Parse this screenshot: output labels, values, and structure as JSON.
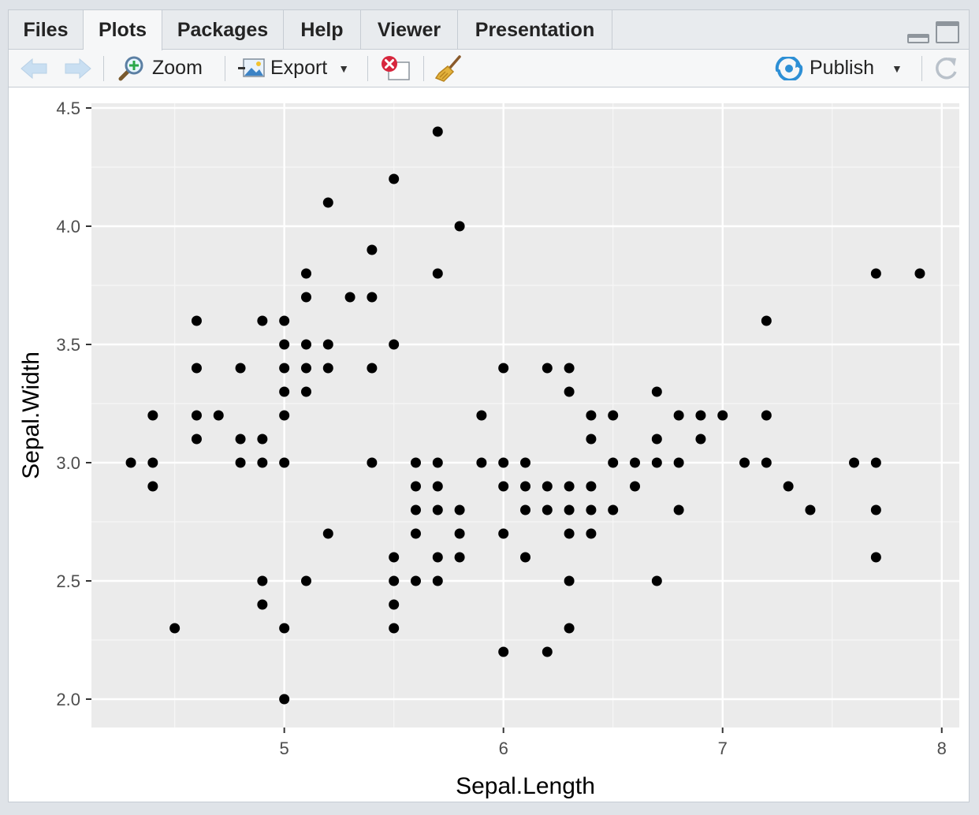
{
  "tabs": [
    {
      "label": "Files",
      "active": false
    },
    {
      "label": "Plots",
      "active": true
    },
    {
      "label": "Packages",
      "active": false
    },
    {
      "label": "Help",
      "active": false
    },
    {
      "label": "Viewer",
      "active": false
    },
    {
      "label": "Presentation",
      "active": false
    }
  ],
  "toolbar": {
    "zoom_label": "Zoom",
    "export_label": "Export",
    "publish_label": "Publish",
    "icons": [
      "back-arrow-icon",
      "forward-arrow-icon",
      "zoom-icon",
      "export-icon",
      "remove-plot-icon",
      "broom-icon",
      "publish-icon",
      "refresh-icon"
    ]
  },
  "colors": {
    "panel_background": "#ebebeb",
    "grid_major": "#ffffff",
    "point": "#000000",
    "publish_accent": "#2d8fd5"
  },
  "chart_data": {
    "type": "scatter",
    "xlabel": "Sepal.Length",
    "ylabel": "Sepal.Width",
    "xlim": [
      4.12,
      8.08
    ],
    "ylim": [
      1.88,
      4.52
    ],
    "x_ticks": [
      5,
      6,
      7,
      8
    ],
    "x_tick_labels": [
      "5",
      "6",
      "7",
      "8"
    ],
    "y_ticks": [
      2.0,
      2.5,
      3.0,
      3.5,
      4.0,
      4.5
    ],
    "y_tick_labels": [
      "2.0",
      "2.5",
      "3.0",
      "3.5",
      "4.0",
      "4.5"
    ],
    "grid": true,
    "legend": "none",
    "points": [
      [
        5.7,
        4.4
      ],
      [
        5.5,
        4.2
      ],
      [
        5.2,
        4.1
      ],
      [
        5.8,
        4.0
      ],
      [
        5.4,
        3.9
      ],
      [
        5.1,
        3.8
      ],
      [
        5.7,
        3.8
      ],
      [
        7.7,
        3.8
      ],
      [
        7.9,
        3.8
      ],
      [
        5.1,
        3.7
      ],
      [
        5.3,
        3.7
      ],
      [
        5.4,
        3.7
      ],
      [
        4.6,
        3.6
      ],
      [
        4.9,
        3.6
      ],
      [
        5.0,
        3.6
      ],
      [
        7.2,
        3.6
      ],
      [
        5.0,
        3.5
      ],
      [
        5.1,
        3.5
      ],
      [
        5.2,
        3.5
      ],
      [
        5.5,
        3.5
      ],
      [
        4.6,
        3.4
      ],
      [
        4.8,
        3.4
      ],
      [
        5.0,
        3.4
      ],
      [
        5.1,
        3.4
      ],
      [
        5.2,
        3.4
      ],
      [
        5.4,
        3.4
      ],
      [
        6.0,
        3.4
      ],
      [
        6.2,
        3.4
      ],
      [
        6.3,
        3.4
      ],
      [
        5.0,
        3.3
      ],
      [
        5.1,
        3.3
      ],
      [
        6.3,
        3.3
      ],
      [
        6.7,
        3.3
      ],
      [
        4.4,
        3.2
      ],
      [
        4.6,
        3.2
      ],
      [
        4.7,
        3.2
      ],
      [
        5.0,
        3.2
      ],
      [
        5.9,
        3.2
      ],
      [
        6.4,
        3.2
      ],
      [
        6.5,
        3.2
      ],
      [
        6.8,
        3.2
      ],
      [
        6.9,
        3.2
      ],
      [
        7.0,
        3.2
      ],
      [
        7.2,
        3.2
      ],
      [
        4.6,
        3.1
      ],
      [
        4.8,
        3.1
      ],
      [
        4.9,
        3.1
      ],
      [
        6.4,
        3.1
      ],
      [
        6.7,
        3.1
      ],
      [
        6.9,
        3.1
      ],
      [
        4.3,
        3.0
      ],
      [
        4.4,
        3.0
      ],
      [
        4.8,
        3.0
      ],
      [
        4.9,
        3.0
      ],
      [
        5.0,
        3.0
      ],
      [
        5.4,
        3.0
      ],
      [
        5.6,
        3.0
      ],
      [
        5.7,
        3.0
      ],
      [
        5.9,
        3.0
      ],
      [
        6.0,
        3.0
      ],
      [
        6.1,
        3.0
      ],
      [
        6.5,
        3.0
      ],
      [
        6.6,
        3.0
      ],
      [
        6.7,
        3.0
      ],
      [
        6.8,
        3.0
      ],
      [
        7.1,
        3.0
      ],
      [
        7.2,
        3.0
      ],
      [
        7.6,
        3.0
      ],
      [
        7.7,
        3.0
      ],
      [
        4.4,
        2.9
      ],
      [
        5.6,
        2.9
      ],
      [
        5.7,
        2.9
      ],
      [
        6.0,
        2.9
      ],
      [
        6.1,
        2.9
      ],
      [
        6.2,
        2.9
      ],
      [
        6.3,
        2.9
      ],
      [
        6.4,
        2.9
      ],
      [
        6.6,
        2.9
      ],
      [
        7.3,
        2.9
      ],
      [
        5.6,
        2.8
      ],
      [
        5.7,
        2.8
      ],
      [
        5.8,
        2.8
      ],
      [
        6.1,
        2.8
      ],
      [
        6.2,
        2.8
      ],
      [
        6.3,
        2.8
      ],
      [
        6.4,
        2.8
      ],
      [
        6.5,
        2.8
      ],
      [
        6.8,
        2.8
      ],
      [
        7.4,
        2.8
      ],
      [
        7.7,
        2.8
      ],
      [
        5.2,
        2.7
      ],
      [
        5.6,
        2.7
      ],
      [
        5.8,
        2.7
      ],
      [
        6.0,
        2.7
      ],
      [
        6.3,
        2.7
      ],
      [
        6.4,
        2.7
      ],
      [
        5.5,
        2.6
      ],
      [
        5.7,
        2.6
      ],
      [
        5.8,
        2.6
      ],
      [
        6.1,
        2.6
      ],
      [
        7.7,
        2.6
      ],
      [
        4.9,
        2.5
      ],
      [
        5.1,
        2.5
      ],
      [
        5.5,
        2.5
      ],
      [
        5.6,
        2.5
      ],
      [
        5.7,
        2.5
      ],
      [
        6.3,
        2.5
      ],
      [
        6.7,
        2.5
      ],
      [
        4.9,
        2.4
      ],
      [
        5.5,
        2.4
      ],
      [
        4.5,
        2.3
      ],
      [
        5.0,
        2.3
      ],
      [
        5.5,
        2.3
      ],
      [
        6.3,
        2.3
      ],
      [
        6.0,
        2.2
      ],
      [
        6.2,
        2.2
      ],
      [
        5.0,
        2.0
      ]
    ]
  }
}
